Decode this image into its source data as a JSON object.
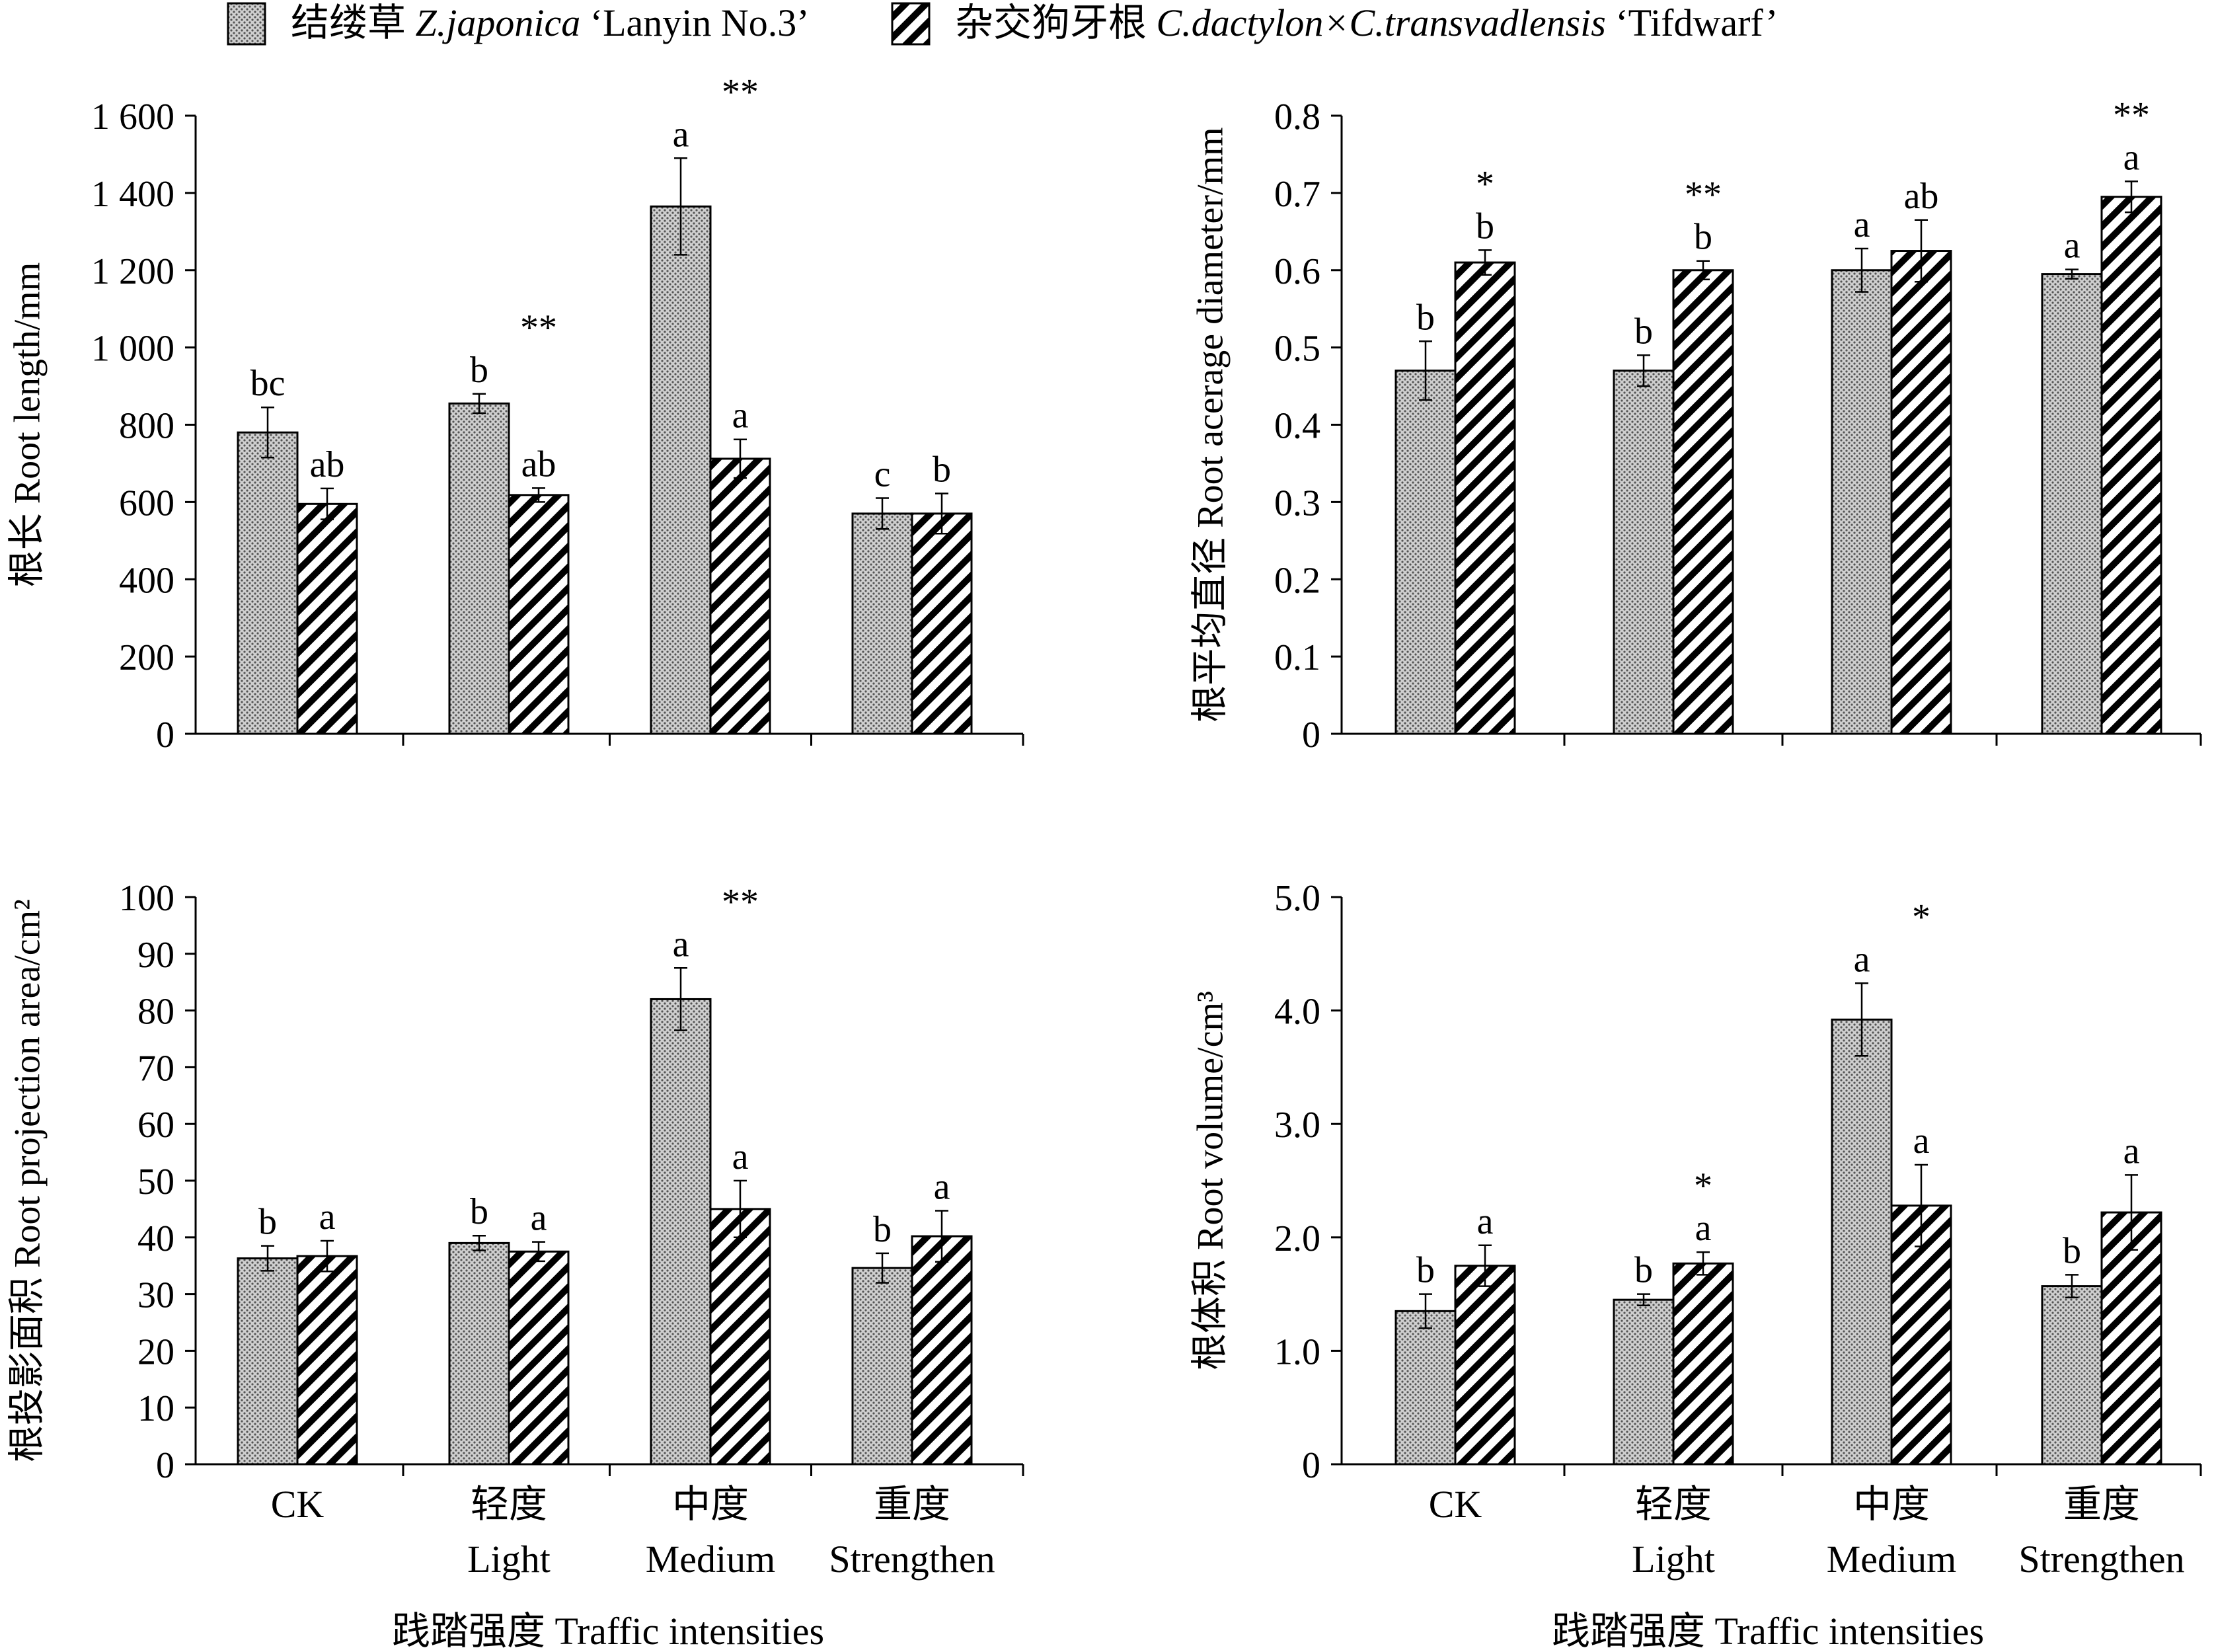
{
  "legend": {
    "series_a": {
      "name_cn": "结缕草",
      "name_species": "Z.japonica",
      "name_cultivar": "‘Lanyin No.3’"
    },
    "series_b": {
      "name_cn": "杂交狗牙根",
      "name_species": "C.dactylon×C.transvadlensis",
      "name_cultivar": "‘Tifdwarf’"
    }
  },
  "x_categories": [
    {
      "cn": "",
      "en": "CK"
    },
    {
      "cn": "轻度",
      "en": "Light"
    },
    {
      "cn": "中度",
      "en": "Medium"
    },
    {
      "cn": "重度",
      "en": "Strengthen"
    }
  ],
  "xlabel": "践踏强度 Traffic intensities",
  "chart_data": [
    {
      "type": "bar",
      "ylabel": "根长 Root length/mm",
      "ylim": [
        0,
        1600
      ],
      "yticks": [
        0,
        200,
        400,
        600,
        800,
        1000,
        1200,
        1400,
        1600
      ],
      "ytick_labels": [
        "0",
        "200",
        "400",
        "600",
        "800",
        "1 000",
        "1 200",
        "1 400",
        "1 600"
      ],
      "categories": [
        "CK",
        "Light",
        "Medium",
        "Strengthen"
      ],
      "series": [
        {
          "name": "Z.japonica ‘Lanyin No.3’",
          "values": [
            780,
            855,
            1365,
            570
          ],
          "errors": [
            65,
            25,
            125,
            40
          ],
          "letters": [
            "bc",
            "b",
            "a",
            "c"
          ]
        },
        {
          "name": "C.dactylon×C.transvadlensis ‘Tifdwarf’",
          "values": [
            595,
            618,
            712,
            570
          ],
          "errors": [
            40,
            18,
            50,
            52
          ],
          "letters": [
            "ab",
            "ab",
            "a",
            "b"
          ]
        }
      ],
      "significance": [
        "",
        "**",
        "**",
        ""
      ]
    },
    {
      "type": "bar",
      "ylabel": "根平均直径 Root acerage diameter/mm",
      "ylim": [
        0,
        0.8
      ],
      "yticks": [
        0,
        0.1,
        0.2,
        0.3,
        0.4,
        0.5,
        0.6,
        0.7,
        0.8
      ],
      "ytick_labels": [
        "0",
        "0.1",
        "0.2",
        "0.3",
        "0.4",
        "0.5",
        "0.6",
        "0.7",
        "0.8"
      ],
      "categories": [
        "CK",
        "Light",
        "Medium",
        "Strengthen"
      ],
      "series": [
        {
          "name": "Z.japonica ‘Lanyin No.3’",
          "values": [
            0.47,
            0.47,
            0.6,
            0.595
          ],
          "errors": [
            0.038,
            0.02,
            0.028,
            0.006
          ],
          "letters": [
            "b",
            "b",
            "a",
            "a"
          ]
        },
        {
          "name": "C.dactylon×C.transvadlensis ‘Tifdwarf’",
          "values": [
            0.61,
            0.6,
            0.625,
            0.695
          ],
          "errors": [
            0.016,
            0.012,
            0.04,
            0.02
          ],
          "letters": [
            "b",
            "b",
            "ab",
            "a"
          ]
        }
      ],
      "significance": [
        "*",
        "**",
        "",
        "**"
      ]
    },
    {
      "type": "bar",
      "ylabel": "根投影面积 Root projection area/cm²",
      "ylim": [
        0,
        100
      ],
      "yticks": [
        0,
        10,
        20,
        30,
        40,
        50,
        60,
        70,
        80,
        90,
        100
      ],
      "ytick_labels": [
        "0",
        "10",
        "20",
        "30",
        "40",
        "50",
        "60",
        "70",
        "80",
        "90",
        "100"
      ],
      "categories": [
        "CK",
        "Light",
        "Medium",
        "Strengthen"
      ],
      "series": [
        {
          "name": "Z.japonica ‘Lanyin No.3’",
          "values": [
            36.3,
            39.0,
            82.0,
            34.6
          ],
          "errors": [
            2.2,
            1.3,
            5.5,
            2.6
          ],
          "letters": [
            "b",
            "b",
            "a",
            "b"
          ]
        },
        {
          "name": "C.dactylon×C.transvadlensis ‘Tifdwarf’",
          "values": [
            36.7,
            37.5,
            45.0,
            40.2
          ],
          "errors": [
            2.7,
            1.7,
            5.0,
            4.5
          ],
          "letters": [
            "a",
            "a",
            "a",
            "a"
          ]
        }
      ],
      "significance": [
        "",
        "",
        "**",
        ""
      ]
    },
    {
      "type": "bar",
      "ylabel": "根体积 Root volume/cm³",
      "ylim": [
        0,
        5.0
      ],
      "yticks": [
        0,
        1.0,
        2.0,
        3.0,
        4.0,
        5.0
      ],
      "ytick_labels": [
        "0",
        "1.0",
        "2.0",
        "3.0",
        "4.0",
        "5.0"
      ],
      "categories": [
        "CK",
        "Light",
        "Medium",
        "Strengthen"
      ],
      "series": [
        {
          "name": "Z.japonica ‘Lanyin No.3’",
          "values": [
            1.35,
            1.45,
            3.92,
            1.57
          ],
          "errors": [
            0.15,
            0.05,
            0.32,
            0.1
          ],
          "letters": [
            "b",
            "b",
            "a",
            "b"
          ]
        },
        {
          "name": "C.dactylon×C.transvadlensis ‘Tifdwarf’",
          "values": [
            1.75,
            1.77,
            2.28,
            2.22
          ],
          "errors": [
            0.18,
            0.1,
            0.36,
            0.33
          ],
          "letters": [
            "a",
            "a",
            "a",
            "a"
          ]
        }
      ],
      "significance": [
        "",
        "*",
        "*",
        ""
      ]
    }
  ]
}
